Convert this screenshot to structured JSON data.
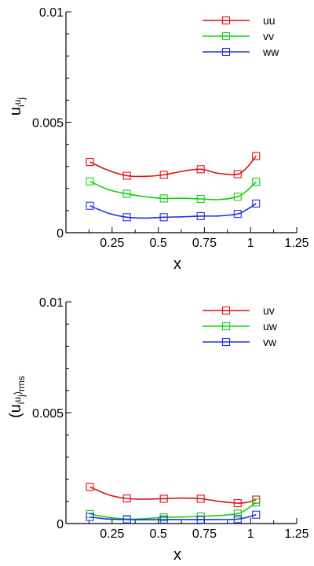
{
  "chart_data": [
    {
      "type": "line",
      "xlabel": "x",
      "ylabel": {
        "base": "u",
        "sub1": "i",
        "mid": "u",
        "sub2": "j",
        "suffix": ""
      },
      "xlim": [
        0,
        1.25
      ],
      "ylim": [
        0,
        0.01
      ],
      "xticks": [
        "0",
        "0.25",
        "0.5",
        "0.75",
        "1",
        "1.25"
      ],
      "yticks": [
        {
          "value": 0,
          "label": "0"
        },
        {
          "value": 0.005,
          "label": "0.005"
        },
        {
          "value": 0.01,
          "label": "0.01"
        }
      ],
      "grid": false,
      "legend_position": "top-right",
      "marker": "open-square",
      "x": [
        0.13,
        0.33,
        0.53,
        0.73,
        0.93,
        1.03
      ],
      "series": [
        {
          "name": "uu",
          "color": "#e01010",
          "values": [
            0.0032,
            0.00258,
            0.00262,
            0.00287,
            0.00265,
            0.00347
          ],
          "curve_x": [
            0.13,
            0.23,
            0.33,
            0.43,
            0.53,
            0.63,
            0.73,
            0.83,
            0.93,
            0.98,
            1.03
          ],
          "curve_y": [
            0.0032,
            0.00282,
            0.00258,
            0.00255,
            0.00262,
            0.00278,
            0.00287,
            0.00268,
            0.00265,
            0.00295,
            0.00347
          ]
        },
        {
          "name": "vv",
          "color": "#10d010",
          "values": [
            0.00232,
            0.00176,
            0.00155,
            0.00153,
            0.00163,
            0.0023
          ],
          "curve_x": [
            0.13,
            0.23,
            0.33,
            0.43,
            0.53,
            0.63,
            0.73,
            0.83,
            0.93,
            0.98,
            1.03
          ],
          "curve_y": [
            0.00232,
            0.00195,
            0.00176,
            0.00163,
            0.00155,
            0.00156,
            0.00153,
            0.0015,
            0.00163,
            0.0019,
            0.0023
          ]
        },
        {
          "name": "ww",
          "color": "#2030e0",
          "values": [
            0.00122,
            0.0007,
            0.0007,
            0.00075,
            0.00085,
            0.00132
          ],
          "curve_x": [
            0.13,
            0.23,
            0.33,
            0.43,
            0.53,
            0.63,
            0.73,
            0.83,
            0.93,
            0.98,
            1.03
          ],
          "curve_y": [
            0.00122,
            0.00088,
            0.0007,
            0.00066,
            0.0007,
            0.00072,
            0.00075,
            0.00076,
            0.00085,
            0.00105,
            0.00132
          ]
        }
      ]
    },
    {
      "type": "line",
      "xlabel": "x",
      "ylabel": {
        "base": "(u",
        "sub1": "i",
        "mid": "u",
        "sub2": "j",
        "suffix": ")",
        "sub3": "rms"
      },
      "xlim": [
        0,
        1.25
      ],
      "ylim": [
        0,
        0.01
      ],
      "xticks": [
        "0",
        "0.25",
        "0.5",
        "0.75",
        "1",
        "1.25"
      ],
      "yticks": [
        {
          "value": 0,
          "label": "0"
        },
        {
          "value": 0.005,
          "label": "0.005"
        },
        {
          "value": 0.01,
          "label": "0.01"
        }
      ],
      "grid": false,
      "legend_position": "top-right",
      "marker": "open-square",
      "x": [
        0.13,
        0.33,
        0.53,
        0.73,
        0.93,
        1.03
      ],
      "series": [
        {
          "name": "uv",
          "color": "#e01010",
          "values": [
            0.00165,
            0.00113,
            0.00112,
            0.00112,
            0.00092,
            0.00108
          ],
          "curve_x": [
            0.13,
            0.23,
            0.33,
            0.43,
            0.53,
            0.63,
            0.73,
            0.83,
            0.93,
            0.98,
            1.03
          ],
          "curve_y": [
            0.00165,
            0.0013,
            0.00113,
            0.0011,
            0.00112,
            0.00115,
            0.00112,
            0.001,
            0.00092,
            0.00095,
            0.00108
          ]
        },
        {
          "name": "uw",
          "color": "#10d010",
          "values": [
            0.00043,
            0.0002,
            0.00028,
            0.00032,
            0.00045,
            0.00095
          ],
          "curve_x": [
            0.13,
            0.23,
            0.33,
            0.43,
            0.53,
            0.63,
            0.73,
            0.83,
            0.93,
            0.98,
            1.03
          ],
          "curve_y": [
            0.00043,
            0.00028,
            0.0002,
            0.00022,
            0.00028,
            0.0003,
            0.00032,
            0.00036,
            0.00045,
            0.00065,
            0.00095
          ]
        },
        {
          "name": "vw",
          "color": "#2030e0",
          "values": [
            0.0003,
            0.00018,
            0.00018,
            0.00018,
            0.0002,
            0.0004
          ],
          "curve_x": [
            0.13,
            0.23,
            0.33,
            0.43,
            0.53,
            0.63,
            0.73,
            0.83,
            0.93,
            0.98,
            1.03
          ],
          "curve_y": [
            0.0003,
            0.0002,
            0.00018,
            0.00017,
            0.00018,
            0.00018,
            0.00018,
            0.00018,
            0.0002,
            0.00028,
            0.0004
          ]
        }
      ]
    }
  ]
}
